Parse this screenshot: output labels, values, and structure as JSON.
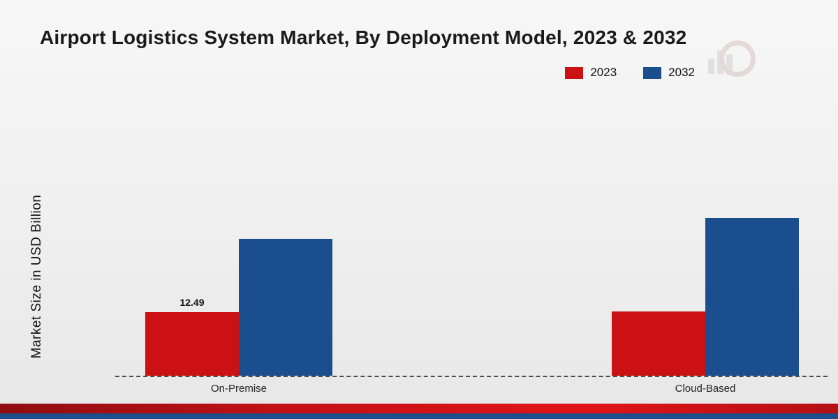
{
  "chart_data": {
    "type": "bar",
    "title": "Airport Logistics System Market, By Deployment Model, 2023 & 2032",
    "ylabel": "Market Size in USD Billion",
    "xlabel": "",
    "categories": [
      "On-Premise",
      "Cloud-Based"
    ],
    "series": [
      {
        "name": "2023",
        "color": "#cc1114",
        "values": [
          12.49,
          12.55
        ],
        "labels": [
          "12.49",
          ""
        ]
      },
      {
        "name": "2032",
        "color": "#1b4e8e",
        "values": [
          26.8,
          31.0
        ],
        "labels": [
          "",
          ""
        ]
      }
    ],
    "ylim": [
      0,
      35
    ],
    "grid": false,
    "legend_position": "top-right",
    "baseline_style": "dashed"
  },
  "colors": {
    "series_2023": "#cc1114",
    "series_2032": "#1b4e8e",
    "footer_red": "#c41116",
    "footer_blue": "#1d4e8c",
    "background": "#efefef"
  }
}
